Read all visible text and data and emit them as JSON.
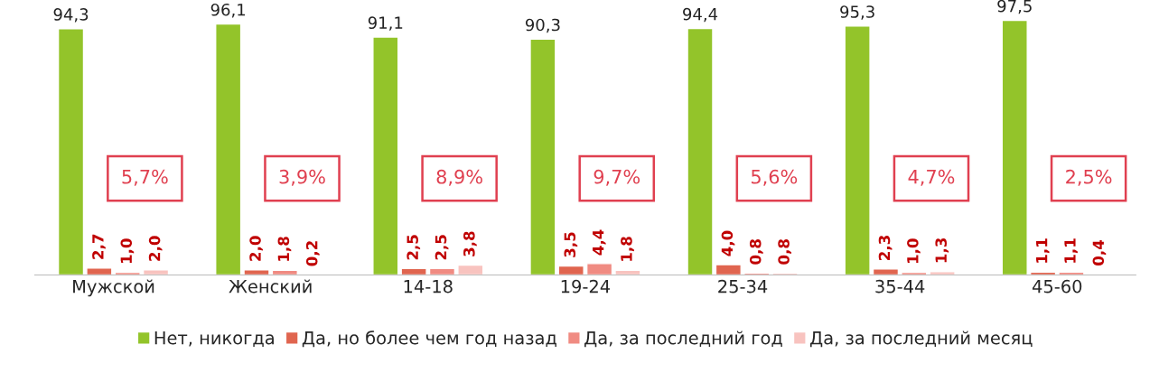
{
  "chart_data": {
    "type": "bar",
    "categories": [
      "Мужской",
      "Женский",
      "14-18",
      "19-24",
      "25-34",
      "35-44",
      "45-60"
    ],
    "series": [
      {
        "name": "Нет, никогда",
        "color": "#93c42a",
        "values": [
          94.3,
          96.1,
          91.1,
          90.3,
          94.4,
          95.3,
          97.5
        ],
        "value_labels": [
          "94,3",
          "96,1",
          "91,1",
          "90,3",
          "94,4",
          "95,3",
          "97,5"
        ]
      },
      {
        "name": "Да, но более чем год назад",
        "color": "#e0654f",
        "values": [
          2.7,
          2.0,
          2.5,
          3.5,
          4.0,
          2.3,
          1.1
        ],
        "value_labels": [
          "2,7",
          "2,0",
          "2,5",
          "3,5",
          "4,0",
          "2,3",
          "1,1"
        ]
      },
      {
        "name": "Да, за последний год",
        "color": "#f08b82",
        "values": [
          1.0,
          1.8,
          2.5,
          4.4,
          0.8,
          1.0,
          1.1
        ],
        "value_labels": [
          "1,0",
          "1,8",
          "2,5",
          "4,4",
          "0,8",
          "1,0",
          "1,1"
        ]
      },
      {
        "name": "Да, за последний месяц",
        "color": "#f8c3bf",
        "values": [
          2.0,
          0.2,
          3.8,
          1.8,
          0.8,
          1.3,
          0.4
        ],
        "value_labels": [
          "2,0",
          "0,2",
          "3,8",
          "1,8",
          "0,8",
          "1,3",
          "0,4"
        ]
      }
    ],
    "annotations": [
      "5,7%",
      "3,9%",
      "8,9%",
      "9,7%",
      "5,6%",
      "4,7%",
      "2,5%"
    ],
    "tick_labels": "x",
    "grid": false,
    "legend": "bottom"
  }
}
